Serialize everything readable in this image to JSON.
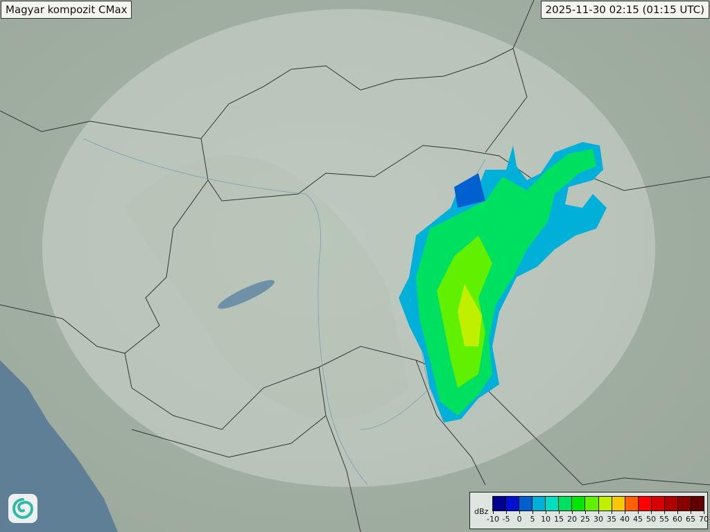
{
  "title": "Magyar kompozit  CMax",
  "timestamp": "2025-11-30 02:15 (01:15 UTC)",
  "legend": {
    "unit": "dBz",
    "ticks": [
      "-10",
      "-5",
      "0",
      "5",
      "10",
      "15",
      "20",
      "25",
      "30",
      "35",
      "40",
      "45",
      "50",
      "55",
      "60",
      "65",
      "70"
    ],
    "colors": [
      "#000090",
      "#0010d0",
      "#0060d0",
      "#00b0d8",
      "#00e0c0",
      "#00e060",
      "#00e800",
      "#60f000",
      "#c0f000",
      "#f8c800",
      "#ff6000",
      "#ff0000",
      "#d80000",
      "#b00000",
      "#880000",
      "#600000"
    ]
  },
  "logo_icon": "swirl-logo-icon"
}
